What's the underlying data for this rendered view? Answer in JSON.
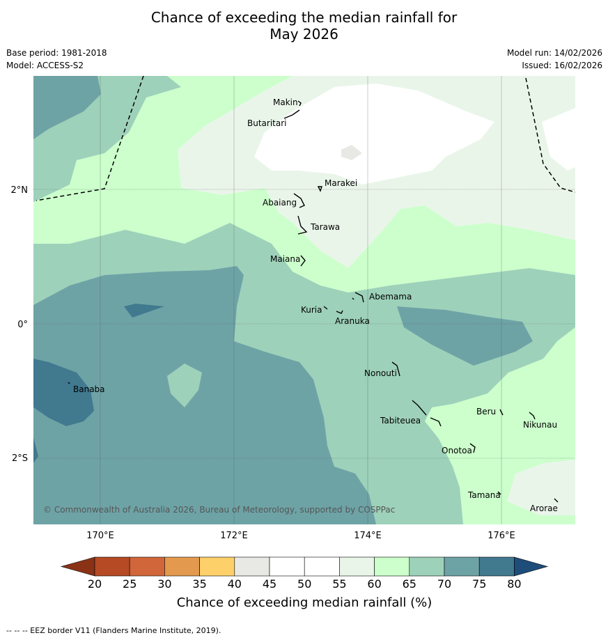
{
  "title": {
    "line1": "Chance of exceeding the median rainfall for",
    "line2": "May 2026"
  },
  "meta": {
    "base_period": "Base period: 1981-2018",
    "model": "Model: ACCESS-S2",
    "model_run": "Model run: 14/02/2026",
    "issued": "Issued: 16/02/2026"
  },
  "map": {
    "copyright": "© Commonwealth of Australia 2026, Bureau of Meteorology, supported by COSPPac",
    "lat_labels": [
      "2°N",
      "0°",
      "2°S"
    ],
    "lon_labels": [
      "170°E",
      "172°E",
      "174°E",
      "176°E"
    ],
    "islands": [
      "Makin",
      "Butaritari",
      "Marakei",
      "Abaiang",
      "Tarawa",
      "Maiana",
      "Abemama",
      "Kuria",
      "Aranuka",
      "Banaba",
      "Nonouti",
      "Tabiteuea",
      "Beru",
      "Nikunau",
      "Onotoa",
      "Tamana",
      "Arorae"
    ]
  },
  "colorbar": {
    "ticks": [
      "20",
      "25",
      "30",
      "35",
      "40",
      "45",
      "50",
      "55",
      "60",
      "65",
      "70",
      "75",
      "80"
    ],
    "colors": [
      "#b54a24",
      "#d0663a",
      "#e39a4e",
      "#fdd06a",
      "#e8e8e4",
      "#ffffff",
      "#ffffff",
      "#eaf5ea",
      "#ccffcc",
      "#9ed1ba",
      "#6ea3a6",
      "#41798f"
    ],
    "under_color": "#8a3216",
    "over_color": "#1e4d7a",
    "label": "Chance of exceeding median rainfall (%)"
  },
  "footer": "--  --  -- EEZ border V11 (Flanders Marine Institute, 2019)."
}
